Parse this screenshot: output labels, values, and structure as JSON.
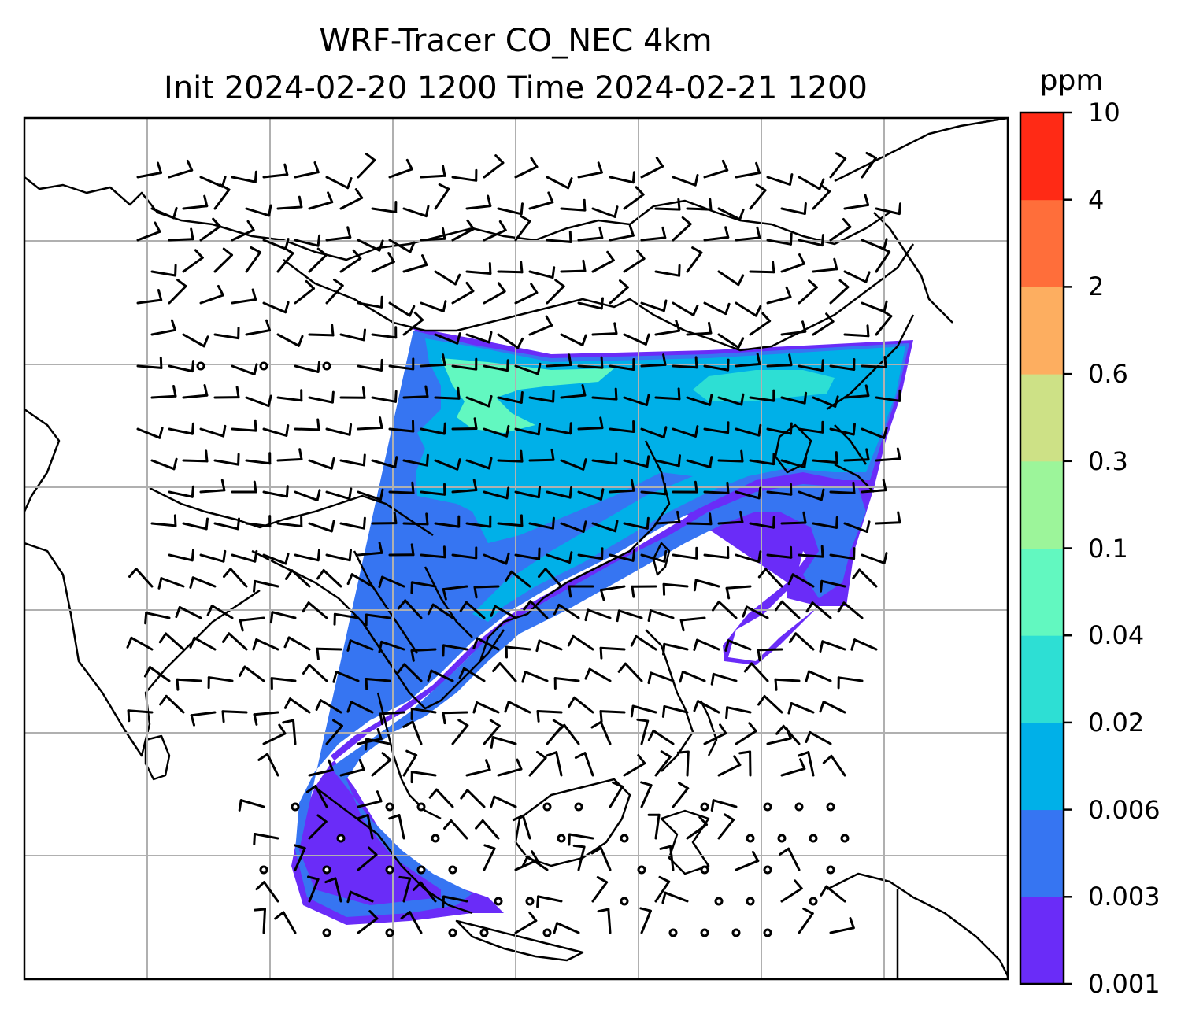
{
  "title": {
    "line1": "WRF-Tracer CO_NEC 4km",
    "line2": "Init 2024-02-20 1200 Time 2024-02-21 1200"
  },
  "colorbar": {
    "unit": "ppm",
    "tick_labels": [
      "0.001",
      "0.003",
      "0.006",
      "0.02",
      "0.04",
      "0.1",
      "0.3",
      "0.6",
      "2",
      "4",
      "10"
    ],
    "colors": [
      "#6a2cf8",
      "#3675f2",
      "#00b0e8",
      "#2ddfd4",
      "#62f8c0",
      "#9cf59a",
      "#cde186",
      "#fdae60",
      "#ff6e3a",
      "#ff2a15"
    ]
  },
  "map": {
    "gridlines": true,
    "grid_color": "#b0b0b0",
    "coastline_color": "#000000",
    "plume_levels": {
      "outer": "0.001-0.003",
      "middle": "0.003-0.006",
      "core": "0.006-0.02",
      "peak": "0.02-0.1"
    },
    "wind_symbols": "wind barbs; circles = calm"
  }
}
